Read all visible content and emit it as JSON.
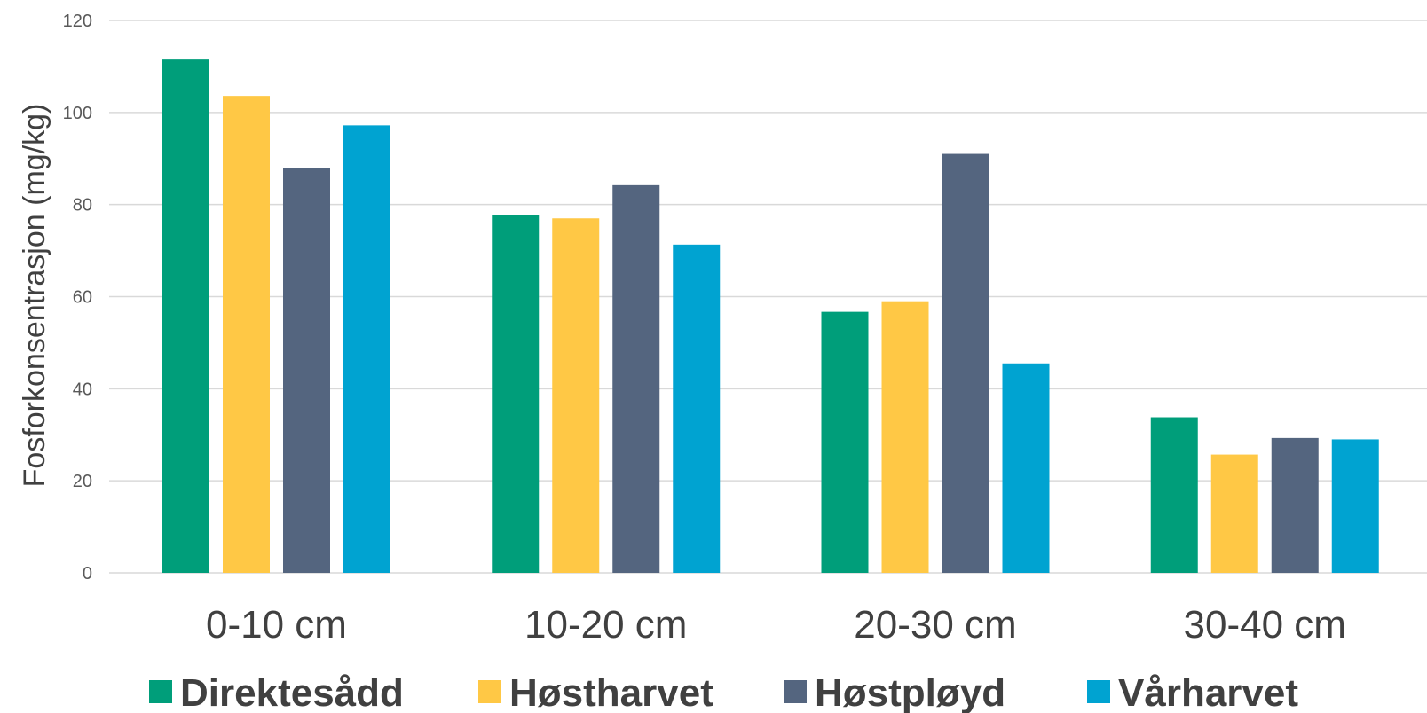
{
  "chart_data": {
    "type": "bar",
    "title": "",
    "xlabel": "",
    "ylabel": "Fosforkonsentrasjon (mg/kg)",
    "ylim": [
      0,
      120
    ],
    "yticks": [
      0,
      20,
      40,
      60,
      80,
      100,
      120
    ],
    "grid": true,
    "legend_position": "bottom",
    "categories": [
      "0-10 cm",
      "10-20 cm",
      "20-30 cm",
      "30-40 cm"
    ],
    "series": [
      {
        "name": "Direktesådd",
        "color": "#009E7A",
        "values": [
          111.5,
          77.8,
          56.7,
          33.8
        ]
      },
      {
        "name": "Høstharvet",
        "color": "#FFC845",
        "values": [
          103.6,
          77.0,
          59.0,
          25.7
        ]
      },
      {
        "name": "Høstpløyd",
        "color": "#54657F",
        "values": [
          88.0,
          84.2,
          91.0,
          29.3
        ]
      },
      {
        "name": "Vårharvet",
        "color": "#00A3D1",
        "values": [
          97.2,
          71.3,
          45.5,
          29.0
        ]
      }
    ]
  }
}
